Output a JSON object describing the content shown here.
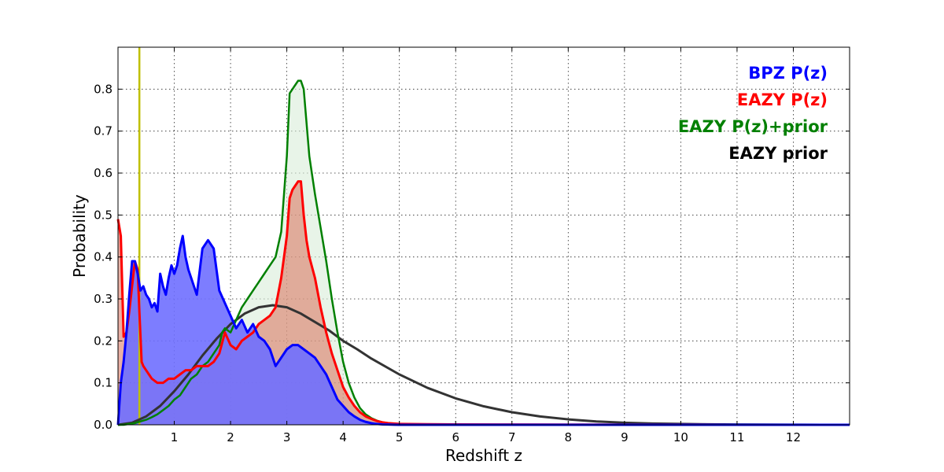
{
  "chart_data": {
    "type": "area",
    "title": "",
    "xlabel": "Redshift z",
    "ylabel": "Probability",
    "xlim": [
      0,
      13
    ],
    "ylim": [
      0,
      0.9
    ],
    "grid": true,
    "legend_placement": "top-right",
    "x_ticks": [
      1,
      2,
      3,
      4,
      5,
      6,
      7,
      8,
      9,
      10,
      11,
      12
    ],
    "y_ticks": [
      0.0,
      0.1,
      0.2,
      0.3,
      0.4,
      0.5,
      0.6,
      0.7,
      0.8
    ],
    "tick_format_y": "0.0",
    "marker_line": {
      "x": 0.38,
      "color": "#bfbf00"
    },
    "series": [
      {
        "name": "BPZ P(z)",
        "color": "#0000ff",
        "fill": "#6f6fff",
        "fill_opacity": 0.9,
        "x": [
          0,
          0.05,
          0.1,
          0.15,
          0.2,
          0.25,
          0.3,
          0.35,
          0.4,
          0.45,
          0.5,
          0.55,
          0.6,
          0.65,
          0.7,
          0.75,
          0.8,
          0.85,
          0.9,
          0.95,
          1.0,
          1.05,
          1.1,
          1.15,
          1.2,
          1.25,
          1.3,
          1.4,
          1.5,
          1.6,
          1.7,
          1.8,
          1.9,
          2.0,
          2.1,
          2.2,
          2.3,
          2.4,
          2.5,
          2.6,
          2.7,
          2.8,
          2.9,
          3.0,
          3.1,
          3.2,
          3.3,
          3.4,
          3.5,
          3.6,
          3.7,
          3.8,
          3.9,
          4.0,
          4.1,
          4.2,
          4.3,
          4.4,
          4.5,
          4.6,
          4.7,
          4.8,
          4.9,
          5.0,
          5.5,
          13
        ],
        "y": [
          0.0,
          0.1,
          0.15,
          0.22,
          0.31,
          0.39,
          0.39,
          0.36,
          0.32,
          0.33,
          0.31,
          0.3,
          0.28,
          0.29,
          0.27,
          0.36,
          0.33,
          0.31,
          0.35,
          0.38,
          0.36,
          0.38,
          0.42,
          0.45,
          0.4,
          0.37,
          0.35,
          0.31,
          0.42,
          0.44,
          0.42,
          0.32,
          0.29,
          0.26,
          0.23,
          0.25,
          0.22,
          0.24,
          0.21,
          0.2,
          0.18,
          0.14,
          0.16,
          0.18,
          0.19,
          0.19,
          0.18,
          0.17,
          0.16,
          0.14,
          0.12,
          0.09,
          0.06,
          0.045,
          0.03,
          0.02,
          0.012,
          0.007,
          0.004,
          0.002,
          0.001,
          0.0006,
          0.0003,
          0.0,
          0.0,
          0.0
        ]
      },
      {
        "name": "EAZY P(z)",
        "color": "#ff0000",
        "fill": "#d9705a",
        "fill_opacity": 0.55,
        "x": [
          0,
          0.05,
          0.1,
          0.15,
          0.2,
          0.25,
          0.3,
          0.35,
          0.38,
          0.42,
          0.45,
          0.5,
          0.55,
          0.6,
          0.7,
          0.8,
          0.9,
          1.0,
          1.1,
          1.2,
          1.3,
          1.4,
          1.5,
          1.6,
          1.7,
          1.8,
          1.9,
          2.0,
          2.1,
          2.2,
          2.3,
          2.4,
          2.5,
          2.6,
          2.7,
          2.8,
          2.9,
          3.0,
          3.05,
          3.1,
          3.15,
          3.2,
          3.25,
          3.3,
          3.35,
          3.4,
          3.5,
          3.6,
          3.7,
          3.8,
          3.9,
          4.0,
          4.1,
          4.2,
          4.3,
          4.4,
          4.5,
          4.6,
          4.7,
          4.8,
          4.9,
          5.0,
          5.5,
          6.0,
          7.0,
          8.0,
          9.0,
          10.0,
          11.0,
          12.0,
          13.0
        ],
        "y": [
          0.49,
          0.45,
          0.21,
          0.22,
          0.27,
          0.33,
          0.39,
          0.37,
          0.27,
          0.15,
          0.14,
          0.13,
          0.12,
          0.11,
          0.1,
          0.1,
          0.11,
          0.11,
          0.12,
          0.13,
          0.13,
          0.14,
          0.14,
          0.14,
          0.15,
          0.17,
          0.22,
          0.19,
          0.18,
          0.2,
          0.21,
          0.22,
          0.24,
          0.25,
          0.26,
          0.28,
          0.35,
          0.45,
          0.54,
          0.56,
          0.57,
          0.58,
          0.58,
          0.5,
          0.44,
          0.4,
          0.35,
          0.28,
          0.22,
          0.17,
          0.13,
          0.09,
          0.065,
          0.045,
          0.03,
          0.02,
          0.014,
          0.009,
          0.006,
          0.004,
          0.003,
          0.002,
          0.0015,
          0.001,
          0.0007,
          0.0005,
          0.0003,
          0.0002,
          0.0001,
          0.0,
          0.0
        ]
      },
      {
        "name": "EAZY P(z)+prior",
        "color": "#008000",
        "fill": "#d9ecd9",
        "fill_opacity": 0.6,
        "x": [
          0,
          0.1,
          0.2,
          0.3,
          0.4,
          0.5,
          0.6,
          0.7,
          0.8,
          0.9,
          1.0,
          1.1,
          1.2,
          1.3,
          1.4,
          1.5,
          1.6,
          1.7,
          1.8,
          1.85,
          1.9,
          2.0,
          2.1,
          2.2,
          2.3,
          2.4,
          2.5,
          2.6,
          2.7,
          2.8,
          2.85,
          2.9,
          2.95,
          3.0,
          3.05,
          3.1,
          3.15,
          3.2,
          3.25,
          3.3,
          3.35,
          3.4,
          3.5,
          3.6,
          3.7,
          3.8,
          3.9,
          4.0,
          4.1,
          4.2,
          4.3,
          4.4,
          4.5,
          4.6,
          4.7,
          4.8,
          4.9,
          5.0,
          5.5,
          6.0,
          7.0,
          13.0
        ],
        "y": [
          0.0,
          0.0,
          0.002,
          0.004,
          0.008,
          0.012,
          0.018,
          0.025,
          0.035,
          0.045,
          0.06,
          0.07,
          0.09,
          0.11,
          0.12,
          0.14,
          0.15,
          0.17,
          0.19,
          0.22,
          0.23,
          0.22,
          0.25,
          0.28,
          0.3,
          0.32,
          0.34,
          0.36,
          0.38,
          0.4,
          0.43,
          0.46,
          0.55,
          0.64,
          0.79,
          0.8,
          0.81,
          0.82,
          0.82,
          0.8,
          0.72,
          0.64,
          0.55,
          0.47,
          0.39,
          0.3,
          0.22,
          0.15,
          0.1,
          0.065,
          0.04,
          0.025,
          0.016,
          0.01,
          0.006,
          0.004,
          0.002,
          0.001,
          0.0005,
          0.0002,
          0.0001,
          0.0
        ]
      },
      {
        "name": "EAZY prior",
        "color": "#333333",
        "fill": "none",
        "fill_opacity": 0,
        "x": [
          0,
          0.25,
          0.5,
          0.75,
          1.0,
          1.25,
          1.5,
          1.75,
          2.0,
          2.25,
          2.5,
          2.75,
          3.0,
          3.25,
          3.5,
          3.75,
          4.0,
          4.25,
          4.5,
          5.0,
          5.5,
          6.0,
          6.5,
          7.0,
          7.5,
          8.0,
          8.5,
          9.0,
          9.5,
          10.0,
          10.5,
          11.0,
          11.5,
          12.0,
          12.5,
          13.0
        ],
        "y": [
          0.0,
          0.005,
          0.02,
          0.045,
          0.08,
          0.12,
          0.165,
          0.205,
          0.24,
          0.265,
          0.28,
          0.285,
          0.28,
          0.265,
          0.245,
          0.225,
          0.2,
          0.18,
          0.158,
          0.12,
          0.088,
          0.063,
          0.044,
          0.03,
          0.02,
          0.013,
          0.008,
          0.005,
          0.003,
          0.002,
          0.0012,
          0.0007,
          0.0004,
          0.0002,
          0.0001,
          0.0
        ]
      }
    ]
  }
}
